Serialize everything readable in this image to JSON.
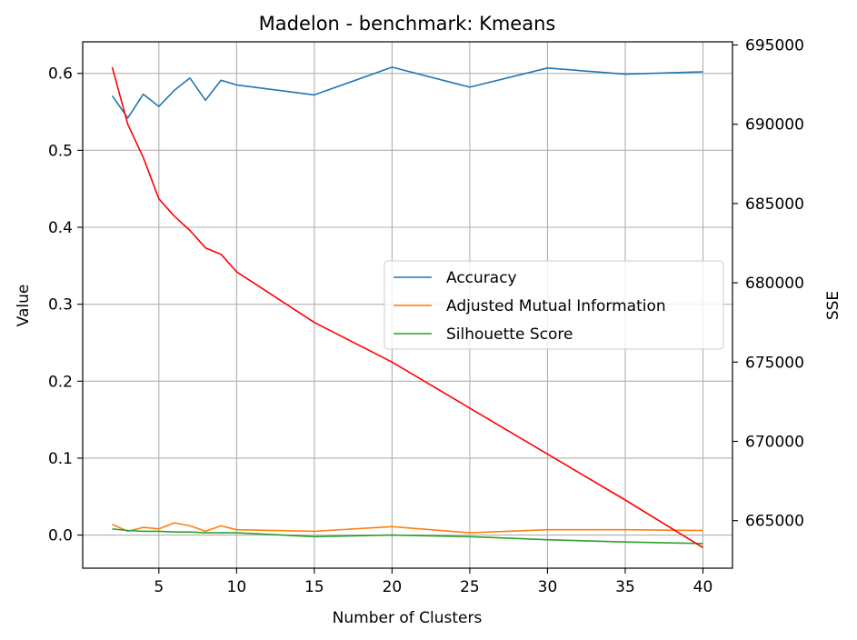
{
  "chart_data": {
    "type": "line",
    "title": "Madelon - benchmark: Kmeans",
    "xlabel": "Number of Clusters",
    "ylabel": "Value",
    "y2label": "SSE",
    "x": [
      2,
      3,
      4,
      5,
      6,
      7,
      8,
      9,
      10,
      15,
      20,
      25,
      30,
      35,
      40
    ],
    "xticks": [
      5,
      10,
      15,
      20,
      25,
      30,
      35,
      40
    ],
    "yticks": [
      0.0,
      0.1,
      0.2,
      0.3,
      0.4,
      0.5,
      0.6
    ],
    "ytick_labels": [
      "0.0",
      "0.1",
      "0.2",
      "0.3",
      "0.4",
      "0.5",
      "0.6"
    ],
    "y2ticks": [
      665000,
      670000,
      675000,
      680000,
      685000,
      690000,
      695000
    ],
    "y2tick_labels": [
      "665000",
      "670000",
      "675000",
      "680000",
      "685000",
      "690000",
      "695000"
    ],
    "xlim": [
      0.1,
      41.9
    ],
    "ylim": [
      -0.043,
      0.641
    ],
    "y2lim": [
      662000,
      695200
    ],
    "grid": true,
    "legend_position": "center-right",
    "series": [
      {
        "name": "Accuracy",
        "axis": "left",
        "color": "#1f77b4",
        "values": [
          0.571,
          0.542,
          0.573,
          0.557,
          0.578,
          0.594,
          0.565,
          0.591,
          0.585,
          0.572,
          0.608,
          0.582,
          0.607,
          0.599,
          0.602
        ]
      },
      {
        "name": "Adjusted Mutual Information",
        "axis": "left",
        "color": "#ff7f0e",
        "values": [
          0.014,
          0.005,
          0.01,
          0.008,
          0.016,
          0.012,
          0.005,
          0.012,
          0.007,
          0.005,
          0.011,
          0.003,
          0.007,
          0.007,
          0.006
        ]
      },
      {
        "name": "Silhouette Score",
        "axis": "left",
        "color": "#2ca02c",
        "values": [
          0.008,
          0.006,
          0.005,
          0.005,
          0.004,
          0.004,
          0.003,
          0.003,
          0.003,
          -0.002,
          0.0,
          -0.002,
          -0.006,
          -0.009,
          -0.011
        ]
      },
      {
        "axis": "right",
        "color": "#ff0000",
        "values": [
          693600,
          690000,
          687900,
          685300,
          684200,
          683300,
          682200,
          681800,
          680700,
          677500,
          675000,
          672100,
          669200,
          666300,
          663300
        ]
      }
    ]
  }
}
